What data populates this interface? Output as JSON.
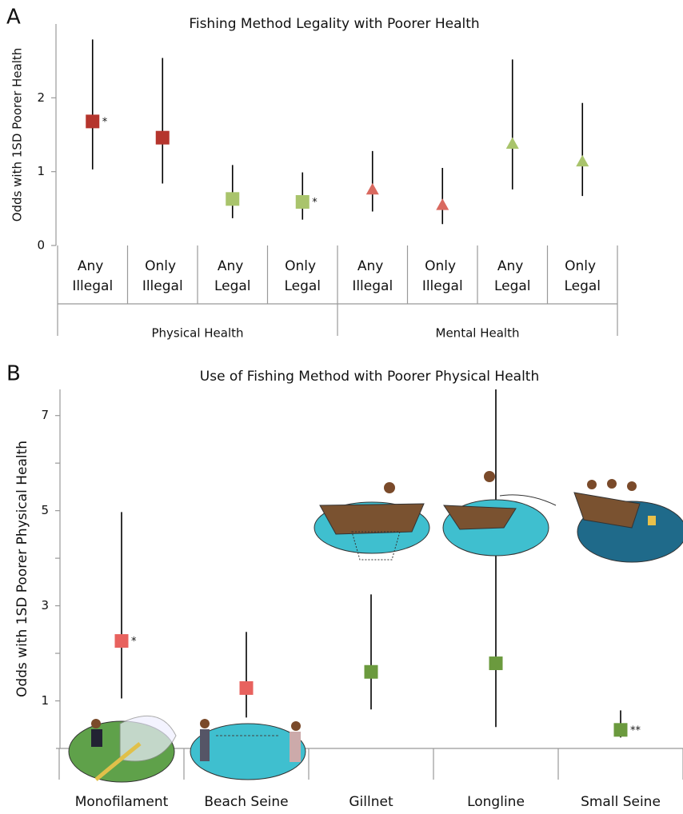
{
  "chart_data": [
    {
      "type": "errorbar",
      "panel_label": "A",
      "title": "Fishing Method Legality with Poorer Health",
      "ylabel": "Odds with 1SD Poorer Health",
      "categories": [
        "Any Illegal",
        "Only Illegal",
        "Any Legal",
        "Only Legal",
        "Any Illegal",
        "Only Illegal",
        "Any Legal",
        "Only Legal"
      ],
      "group_labels": [
        "Physical Health",
        "Mental Health"
      ],
      "values": [
        1.68,
        1.46,
        0.63,
        0.59,
        0.76,
        0.55,
        1.38,
        1.14
      ],
      "lower": [
        1.03,
        0.84,
        0.37,
        0.35,
        0.46,
        0.29,
        0.76,
        0.67
      ],
      "upper": [
        2.79,
        2.54,
        1.09,
        0.99,
        1.28,
        1.05,
        2.52,
        1.93
      ],
      "colors": [
        "#b5352d",
        "#b5352d",
        "#a9c46c",
        "#a9c46c",
        "#d9695f",
        "#d9695f",
        "#a9c46c",
        "#a9c46c"
      ],
      "markers": [
        "square",
        "square",
        "square",
        "square",
        "triangle",
        "triangle",
        "triangle",
        "triangle"
      ],
      "significance": [
        "*",
        null,
        null,
        "*",
        null,
        null,
        null,
        null
      ],
      "ylim": [
        0,
        3
      ],
      "yticks": [
        0,
        1,
        2
      ]
    },
    {
      "type": "errorbar",
      "panel_label": "B",
      "title": "Use of Fishing Method with Poorer Physical Health",
      "ylabel": "Odds with 1SD Poorer Physical Health",
      "categories": [
        "Monofilament",
        "Beach Seine",
        "Gillnet",
        "Longline",
        "Small Seine"
      ],
      "values": [
        2.26,
        1.27,
        1.61,
        1.79,
        0.39
      ],
      "lower": [
        1.05,
        0.65,
        0.82,
        0.45,
        0.23
      ],
      "upper": [
        4.97,
        2.45,
        3.24,
        7.55,
        0.8
      ],
      "colors": [
        "#e8625e",
        "#e8625e",
        "#6b9a3e",
        "#6b9a3e",
        "#6b9a3e"
      ],
      "markers": [
        "square",
        "square",
        "square",
        "square",
        "square"
      ],
      "significance": [
        "*",
        null,
        null,
        null,
        "**"
      ],
      "ylim": [
        0,
        7.55
      ],
      "yticks": [
        1,
        3,
        5,
        7
      ],
      "yminor_ticks": [
        2,
        4,
        6
      ]
    }
  ]
}
